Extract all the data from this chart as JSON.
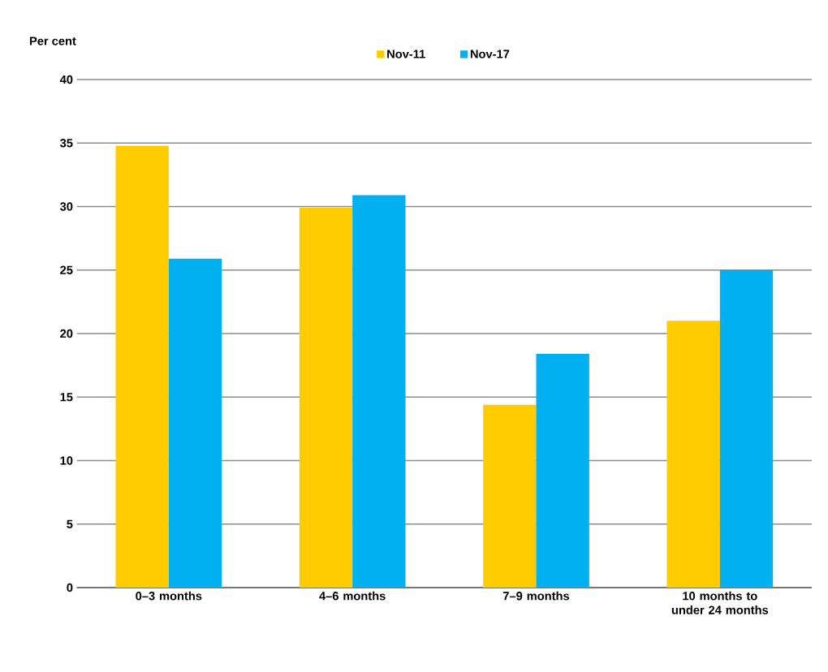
{
  "chart_data": {
    "type": "bar",
    "ylabel": "Per cent",
    "categories": [
      "0–3 months",
      "4–6 months",
      "7–9 months",
      "10 months to under 24 months"
    ],
    "series": [
      {
        "name": "Nov-11",
        "color": "#ffcc00",
        "values": [
          34.8,
          29.9,
          14.4,
          21.0
        ]
      },
      {
        "name": "Nov-17",
        "color": "#00b0f0",
        "values": [
          25.9,
          30.9,
          18.4,
          25.0
        ]
      }
    ],
    "ylim": [
      0,
      40
    ],
    "yticks": [
      0,
      5,
      10,
      15,
      20,
      25,
      30,
      35,
      40
    ],
    "grid": "y",
    "legend": "top"
  }
}
